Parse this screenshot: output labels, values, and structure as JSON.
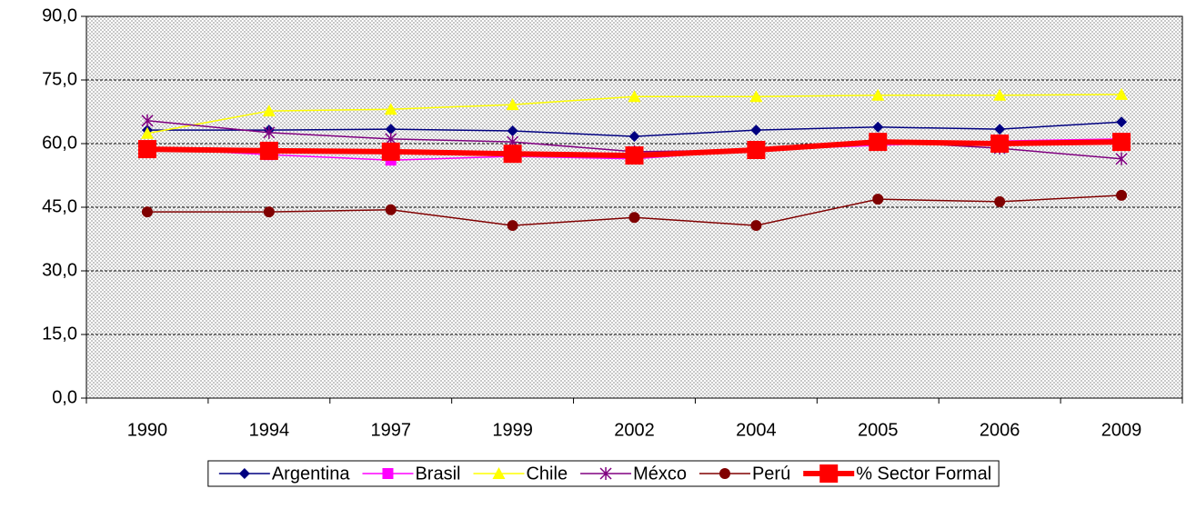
{
  "chart_data": {
    "type": "line",
    "categories": [
      "1990",
      "1994",
      "1997",
      "1999",
      "2002",
      "2004",
      "2005",
      "2006",
      "2009"
    ],
    "series": [
      {
        "name": "Argentina",
        "color": "#000080",
        "marker": "diamond",
        "line_width": 1.5,
        "values": [
          63.2,
          63.2,
          63.4,
          63.0,
          61.7,
          63.2,
          63.9,
          63.4,
          65.1
        ]
      },
      {
        "name": "Brasil",
        "color": "#ff00ff",
        "marker": "square",
        "line_width": 1.5,
        "values": [
          58.9,
          57.4,
          56.1,
          57.0,
          56.4,
          58.5,
          59.6,
          60.6,
          61.1
        ]
      },
      {
        "name": "Chile",
        "color": "#ffff00",
        "marker": "triangle",
        "line_width": 1.5,
        "values": [
          62.4,
          67.7,
          68.1,
          69.2,
          71.1,
          71.1,
          71.4,
          71.4,
          71.6
        ]
      },
      {
        "name": "Méxco",
        "color": "#800080",
        "marker": "star",
        "line_width": 1.5,
        "values": [
          65.4,
          62.6,
          61.1,
          60.4,
          58.1,
          58.5,
          60.6,
          58.9,
          56.4
        ]
      },
      {
        "name": "Perú",
        "color": "#800000",
        "marker": "circle",
        "line_width": 1.5,
        "values": [
          43.9,
          43.9,
          44.4,
          40.7,
          42.6,
          40.7,
          46.9,
          46.3,
          47.8
        ]
      },
      {
        "name": "% Sector Formal",
        "color": "#ff0000",
        "marker": "square-large",
        "line_width": 6,
        "values": [
          58.7,
          58.3,
          58.1,
          57.6,
          57.2,
          58.5,
          60.4,
          60.0,
          60.4
        ]
      }
    ],
    "ylim": [
      0,
      90
    ],
    "yticks": [
      {
        "value": 0,
        "label": "0,0"
      },
      {
        "value": 15,
        "label": "15,0"
      },
      {
        "value": 30,
        "label": "30,0"
      },
      {
        "value": 45,
        "label": "45,0"
      },
      {
        "value": 60,
        "label": "60,0"
      },
      {
        "value": 75,
        "label": "75,0"
      },
      {
        "value": 90,
        "label": "90,0"
      }
    ],
    "grid": true,
    "legend": "bottom"
  }
}
